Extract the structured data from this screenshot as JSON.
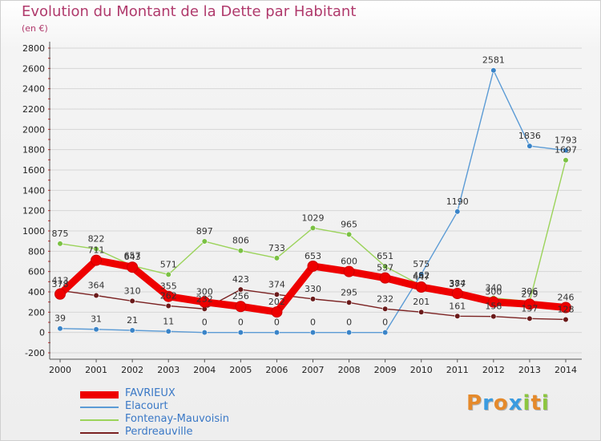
{
  "header": {
    "title": "Evolution du Montant de la Dette par Habitant",
    "unit": "(en €)"
  },
  "logo": {
    "text": "Proxiti",
    "letters": [
      "P",
      "r",
      "o",
      "x",
      "i",
      "t",
      "i"
    ],
    "colors": [
      "#e58a2b",
      "#3a9be0",
      "#e58a2b",
      "#3a9be0",
      "#8cc63f",
      "#e58a2b",
      "#8cc63f"
    ]
  },
  "chart_data": {
    "type": "line",
    "title": "Evolution du Montant de la Dette par Habitant",
    "subtitle": "(en €)",
    "xlabel": "",
    "ylabel": "",
    "x": [
      2000,
      2001,
      2002,
      2003,
      2004,
      2005,
      2006,
      2007,
      2008,
      2009,
      2010,
      2011,
      2012,
      2013,
      2014
    ],
    "ylim": [
      -200,
      2800
    ],
    "yticks": [
      -200,
      0,
      200,
      400,
      600,
      800,
      1000,
      1200,
      1400,
      1600,
      1800,
      2000,
      2200,
      2400,
      2600,
      2800
    ],
    "grid": true,
    "legend_position": "bottom-left",
    "series": [
      {
        "name": "FAVRIEUX",
        "color": "#ee0000",
        "marker_color": "#ee0000",
        "values": [
          378,
          711,
          643,
          355,
          300,
          256,
          202,
          653,
          600,
          537,
          447,
          384,
          300,
          279,
          246
        ],
        "labels": [
          "378",
          "711",
          "643",
          "355",
          "300",
          "256",
          "202",
          "653",
          "600",
          "537",
          "447",
          "384",
          "300",
          "279",
          "246"
        ]
      },
      {
        "name": "Elacourt",
        "color": "#5b9bd5",
        "marker_color": "#3a84c8",
        "values": [
          39,
          31,
          21,
          11,
          0,
          0,
          0,
          0,
          0,
          0,
          575,
          1190,
          2581,
          1836,
          1793
        ],
        "labels": [
          "39",
          "31",
          "21",
          "11",
          "0",
          "0",
          "0",
          "0",
          "0",
          "0",
          "575",
          "1190",
          "2581",
          "1836",
          "1793"
        ]
      },
      {
        "name": "Fontenay-Mauvoisin",
        "color": "#9bd35a",
        "marker_color": "#7ac143",
        "values": [
          875,
          822,
          657,
          571,
          897,
          806,
          733,
          1029,
          965,
          651,
          462,
          377,
          340,
          306,
          1697
        ],
        "labels": [
          "875",
          "822",
          "657",
          "571",
          "897",
          "806",
          "733",
          "1029",
          "965",
          "651",
          "462",
          "377",
          "340",
          "306",
          "1697"
        ]
      },
      {
        "name": "Perdreauville",
        "color": "#7b2222",
        "marker_color": "#6a1a1a",
        "values": [
          413,
          364,
          310,
          262,
          232,
          423,
          374,
          330,
          295,
          232,
          201,
          161,
          158,
          137,
          128
        ],
        "labels": [
          "413",
          "364",
          "310",
          "262",
          "232",
          "423",
          "374",
          "330",
          "295",
          "232",
          "201",
          "161",
          "158",
          "137",
          "128"
        ]
      }
    ]
  }
}
